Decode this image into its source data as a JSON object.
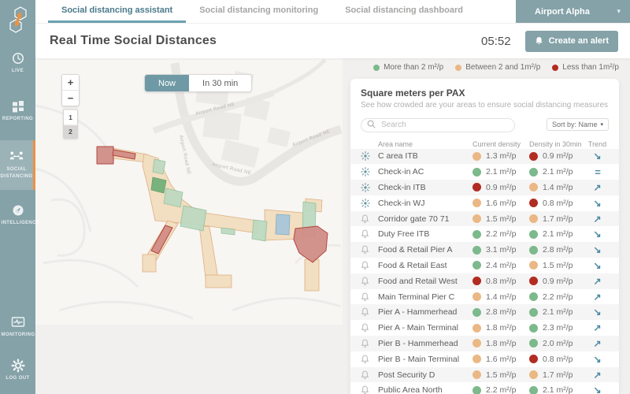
{
  "topbar": {
    "tabs": [
      {
        "label": "Social distancing assistant",
        "active": true
      },
      {
        "label": "Social distancing monitoring",
        "active": false
      },
      {
        "label": "Social distancing dashboard",
        "active": false
      }
    ],
    "org": "Airport Alpha",
    "org_chevron": "▾"
  },
  "sidebar": {
    "items": [
      {
        "label": "LIVE",
        "icon": "clock-icon"
      },
      {
        "label": "REPORTING",
        "icon": "grid-icon"
      },
      {
        "label": "SOCIAL DISTANCING",
        "icon": "people-distance-icon",
        "active": true
      },
      {
        "label": "INTELLIGENCE",
        "icon": "compass-icon"
      },
      {
        "label": "MONITORING",
        "icon": "monitor-pulse-icon"
      },
      {
        "label": "LOG OUT",
        "icon": "gear-icon"
      }
    ]
  },
  "header": {
    "title": "Real Time Social Distances",
    "timer": "05:52",
    "create_alert_label": "Create an alert"
  },
  "map": {
    "zoom_in": "+",
    "zoom_out": "−",
    "floors": [
      "1",
      "2"
    ],
    "selected_floor": "2",
    "toggle": {
      "now": "Now",
      "in30": "In 30 min",
      "selected": "Now"
    },
    "road_label": "Airport Road NE"
  },
  "legend": {
    "items": [
      {
        "label": "More than 2 m²/p",
        "level": "green"
      },
      {
        "label": "Between 2 and 1m²/p",
        "level": "orange"
      },
      {
        "label": "Less than 1m²/p",
        "level": "red"
      }
    ]
  },
  "panel": {
    "title": "Square meters per PAX",
    "subtitle": "See how crowded are your areas to ensure social distancing measures",
    "search_placeholder": "Search",
    "sort_label": "Sort by: Name",
    "sort_chevron": "▾"
  },
  "table": {
    "headers": [
      "Area name",
      "Current density",
      "Density in 30min",
      "Trend"
    ],
    "rows": [
      {
        "name": "C area ITB",
        "alert": true,
        "current": {
          "value": "1.3 m²/p",
          "level": "orange"
        },
        "in30": {
          "value": "0.9 m²/p",
          "level": "red"
        },
        "trend": "down"
      },
      {
        "name": "Check-in AC",
        "alert": true,
        "current": {
          "value": "2.1 m²/p",
          "level": "green"
        },
        "in30": {
          "value": "2.1 m²/p",
          "level": "green"
        },
        "trend": "equal"
      },
      {
        "name": "Check-in ITB",
        "alert": true,
        "current": {
          "value": "0.9 m²/p",
          "level": "red"
        },
        "in30": {
          "value": "1.4 m²/p",
          "level": "orange"
        },
        "trend": "up"
      },
      {
        "name": "Check-in WJ",
        "alert": true,
        "current": {
          "value": "1.6 m²/p",
          "level": "orange"
        },
        "in30": {
          "value": "0.8 m²/p",
          "level": "red"
        },
        "trend": "down"
      },
      {
        "name": "Corridor gate 70 71",
        "alert": false,
        "current": {
          "value": "1.5 m²/p",
          "level": "orange"
        },
        "in30": {
          "value": "1.7 m²/p",
          "level": "orange"
        },
        "trend": "up"
      },
      {
        "name": "Duty Free ITB",
        "alert": false,
        "current": {
          "value": "2.2 m²/p",
          "level": "green"
        },
        "in30": {
          "value": "2.1 m²/p",
          "level": "green"
        },
        "trend": "down"
      },
      {
        "name": "Food & Retail Pier A",
        "alert": false,
        "current": {
          "value": "3.1 m²/p",
          "level": "green"
        },
        "in30": {
          "value": "2.8 m²/p",
          "level": "green"
        },
        "trend": "down"
      },
      {
        "name": "Food & Retail East",
        "alert": false,
        "current": {
          "value": "2.4 m²/p",
          "level": "green"
        },
        "in30": {
          "value": "1.5 m²/p",
          "level": "orange"
        },
        "trend": "down"
      },
      {
        "name": "Food and Retail West",
        "alert": false,
        "current": {
          "value": "0.8 m²/p",
          "level": "red"
        },
        "in30": {
          "value": "0.9 m²/p",
          "level": "red"
        },
        "trend": "up"
      },
      {
        "name": "Main Terminal Pier C",
        "alert": false,
        "current": {
          "value": "1.4 m²/p",
          "level": "orange"
        },
        "in30": {
          "value": "2.2 m²/p",
          "level": "green"
        },
        "trend": "up"
      },
      {
        "name": "Pier A - Hammerhead",
        "alert": false,
        "current": {
          "value": "2.8 m²/p",
          "level": "green"
        },
        "in30": {
          "value": "2.1 m²/p",
          "level": "green"
        },
        "trend": "down"
      },
      {
        "name": "Pier A - Main Terminal",
        "alert": false,
        "current": {
          "value": "1.8 m²/p",
          "level": "orange"
        },
        "in30": {
          "value": "2.3 m²/p",
          "level": "green"
        },
        "trend": "up"
      },
      {
        "name": "Pier B - Hammerhead",
        "alert": false,
        "current": {
          "value": "1.8 m²/p",
          "level": "orange"
        },
        "in30": {
          "value": "2.0 m²/p",
          "level": "green"
        },
        "trend": "up"
      },
      {
        "name": "Pier B - Main Terminal",
        "alert": false,
        "current": {
          "value": "1.6 m²/p",
          "level": "orange"
        },
        "in30": {
          "value": "0.8 m²/p",
          "level": "red"
        },
        "trend": "down"
      },
      {
        "name": "Post Security D",
        "alert": false,
        "current": {
          "value": "1.5 m²/p",
          "level": "orange"
        },
        "in30": {
          "value": "1.7 m²/p",
          "level": "orange"
        },
        "trend": "up"
      },
      {
        "name": "Public Area North",
        "alert": false,
        "current": {
          "value": "2.2 m²/p",
          "level": "green"
        },
        "in30": {
          "value": "2.1 m²/p",
          "level": "green"
        },
        "trend": "down"
      }
    ]
  },
  "colors": {
    "green": "#7cb98c",
    "orange": "#eab885",
    "red": "#b22c22",
    "teal": "#84a2a8",
    "teal_selected": "#6f9aa5",
    "accent_orange": "#ef9140",
    "trend": "#4a8ca3"
  }
}
